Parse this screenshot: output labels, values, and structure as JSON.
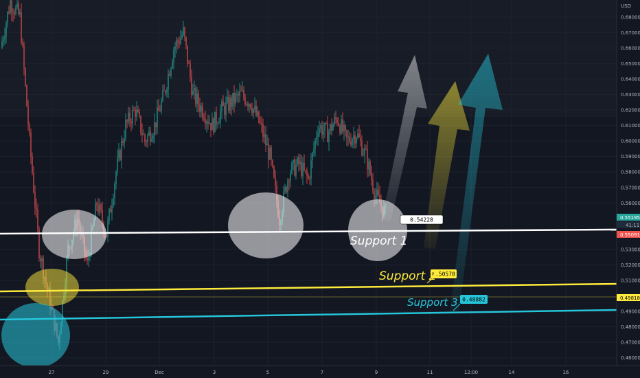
{
  "chart_data": {
    "type": "candlestick",
    "currency": "USD",
    "y_axis": {
      "ticks": [
        "0.68000",
        "0.67000",
        "0.66000",
        "0.65000",
        "0.64000",
        "0.63000",
        "0.62000",
        "0.61000",
        "0.60000",
        "0.59000",
        "0.58000",
        "0.57000",
        "0.56000",
        "0.53000",
        "0.52000",
        "0.51000",
        "0.49000",
        "0.48000",
        "0.47000",
        "0.46000"
      ],
      "ylim": [
        0.455,
        0.691
      ]
    },
    "x_axis": {
      "ticks": [
        "27",
        "29",
        "Dec",
        "3",
        "5",
        "7",
        "9",
        "11",
        "12:00",
        "14",
        "16"
      ]
    },
    "price_tags": [
      {
        "value": "0.55195",
        "color": "#26a69a",
        "text_color": "#ffffff"
      },
      {
        "value": "41:11",
        "color": "#1f2a3a",
        "text_color": "#b2b5be"
      },
      {
        "value": "0.55091",
        "color": "#ef5350",
        "text_color": "#ffffff"
      },
      {
        "value": "0.49818",
        "color": "#ffeb3b",
        "text_color": "#000000"
      }
    ],
    "support_levels": [
      {
        "label": "Support 1",
        "value": "0.54228",
        "color": "#ffffff"
      },
      {
        "label": "Support 2",
        "value": "0.50570",
        "color": "#ffeb3b"
      },
      {
        "label": "Support 3",
        "value": "0.48882",
        "color": "#26c6da"
      }
    ],
    "trend": "downtrend to support, projected rebound",
    "candle_colors": {
      "up": "#26a69a",
      "down": "#ef5350"
    },
    "price_series": [
      [
        0.66,
        0.69
      ],
      [
        0.69,
        0.68
      ],
      [
        0.68,
        0.6
      ],
      [
        0.6,
        0.53
      ],
      [
        0.53,
        0.5
      ],
      [
        0.5,
        0.47
      ],
      [
        0.47,
        0.53
      ],
      [
        0.53,
        0.55
      ],
      [
        0.55,
        0.52
      ],
      [
        0.52,
        0.56
      ],
      [
        0.56,
        0.54
      ],
      [
        0.54,
        0.58
      ],
      [
        0.58,
        0.61
      ],
      [
        0.61,
        0.62
      ],
      [
        0.62,
        0.6
      ],
      [
        0.6,
        0.61
      ],
      [
        0.61,
        0.63
      ],
      [
        0.63,
        0.66
      ],
      [
        0.66,
        0.67
      ],
      [
        0.67,
        0.63
      ],
      [
        0.63,
        0.62
      ],
      [
        0.62,
        0.61
      ],
      [
        0.61,
        0.62
      ],
      [
        0.62,
        0.625
      ],
      [
        0.625,
        0.63
      ],
      [
        0.63,
        0.625
      ],
      [
        0.625,
        0.61
      ],
      [
        0.61,
        0.59
      ],
      [
        0.59,
        0.55
      ],
      [
        0.55,
        0.58
      ],
      [
        0.58,
        0.585
      ],
      [
        0.585,
        0.575
      ],
      [
        0.575,
        0.61
      ],
      [
        0.61,
        0.605
      ],
      [
        0.605,
        0.615
      ],
      [
        0.615,
        0.6
      ],
      [
        0.6,
        0.605
      ],
      [
        0.605,
        0.59
      ],
      [
        0.59,
        0.565
      ],
      [
        0.565,
        0.553
      ]
    ]
  }
}
